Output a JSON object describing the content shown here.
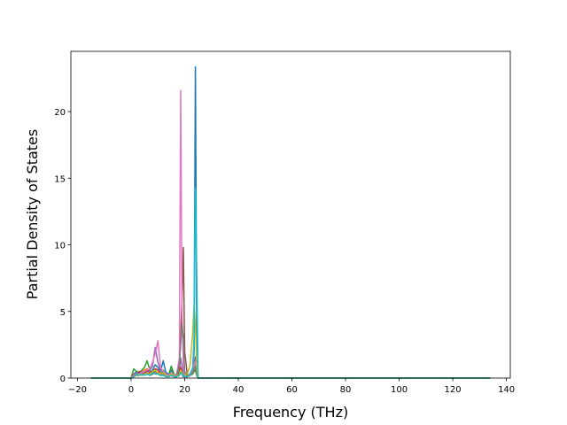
{
  "chart_data": {
    "type": "line",
    "xlabel": "Frequency (THz)",
    "ylabel": "Partial Density of States",
    "x": [
      -15,
      -1,
      0,
      1,
      2,
      3,
      4,
      5,
      6,
      7,
      8,
      9,
      10,
      11,
      12,
      13,
      14,
      15,
      16,
      17,
      18,
      18.5,
      19,
      19.5,
      20,
      21,
      22,
      23,
      23.5,
      24,
      24.5,
      25,
      26,
      134
    ],
    "series": [
      {
        "color": "#1f77b4",
        "values": [
          0,
          0,
          0,
          0.3,
          0.5,
          0.3,
          0.2,
          0.4,
          0.5,
          0.3,
          0.6,
          1.0,
          0.8,
          0.5,
          1.3,
          0.4,
          0.3,
          0.6,
          0.2,
          0.1,
          0.2,
          0.5,
          0.3,
          0.1,
          0.2,
          0.1,
          0.2,
          0.5,
          2.0,
          23.35,
          3.0,
          0,
          0,
          0
        ]
      },
      {
        "color": "#ff7f0e",
        "values": [
          0,
          0,
          0,
          0.2,
          0.3,
          0.4,
          0.5,
          0.6,
          0.7,
          0.5,
          0.3,
          0.4,
          0.3,
          0.2,
          0.3,
          0.2,
          0.1,
          0.2,
          0.1,
          0.1,
          0.2,
          0.3,
          0.4,
          0.2,
          0.1,
          0.1,
          0.2,
          0.4,
          0.6,
          0.5,
          0.2,
          0,
          0,
          0
        ]
      },
      {
        "color": "#2ca02c",
        "values": [
          0,
          0,
          0,
          0.7,
          0.5,
          0.4,
          0.6,
          0.8,
          1.3,
          0.6,
          0.4,
          0.5,
          0.4,
          0.3,
          0.6,
          0.3,
          0.2,
          0.9,
          0.3,
          0.1,
          0.3,
          0.6,
          0.4,
          0.2,
          0.1,
          0.1,
          0.2,
          0.3,
          0.5,
          0.7,
          0.2,
          0,
          0,
          0
        ]
      },
      {
        "color": "#d62728",
        "values": [
          0,
          0,
          0,
          0.3,
          0.2,
          0.5,
          0.4,
          0.3,
          0.6,
          0.4,
          0.5,
          0.7,
          0.6,
          0.3,
          0.4,
          0.2,
          0.1,
          0.3,
          0.2,
          0.1,
          0.4,
          0.8,
          0.5,
          0.3,
          0.1,
          0.1,
          0.2,
          0.6,
          0.9,
          1.1,
          0.3,
          0,
          0,
          0
        ]
      },
      {
        "color": "#9467bd",
        "values": [
          0,
          0,
          0,
          0.2,
          0.4,
          0.3,
          0.5,
          0.4,
          0.3,
          0.6,
          0.9,
          2.3,
          1.2,
          0.6,
          0.5,
          0.3,
          0.2,
          0.4,
          0.2,
          0.1,
          0.6,
          1.5,
          0.9,
          0.4,
          0.2,
          0.1,
          0.3,
          0.7,
          1.2,
          1.6,
          0.4,
          0,
          0,
          0
        ]
      },
      {
        "color": "#8c564b",
        "values": [
          0,
          0,
          0,
          0.1,
          0.2,
          0.3,
          0.2,
          0.4,
          0.3,
          0.2,
          0.3,
          0.5,
          0.4,
          0.2,
          0.3,
          0.2,
          0.1,
          0.2,
          0.1,
          0.1,
          0.5,
          3.0,
          6.0,
          9.8,
          2.0,
          0.2,
          0.3,
          0.5,
          0.8,
          1.0,
          0.3,
          0,
          0,
          0
        ]
      },
      {
        "color": "#e377c2",
        "values": [
          0,
          0,
          0,
          0.2,
          0.3,
          0.2,
          0.4,
          0.5,
          0.6,
          0.7,
          1.2,
          1.8,
          2.8,
          0.8,
          0.5,
          0.3,
          0.2,
          0.4,
          0.2,
          0.3,
          1.5,
          21.6,
          5.0,
          1.0,
          0.3,
          0.1,
          0.2,
          0.5,
          0.9,
          1.2,
          0.3,
          0,
          0,
          0
        ]
      },
      {
        "color": "#7f7f7f",
        "values": [
          0,
          0,
          0,
          0.1,
          0.2,
          0.2,
          0.3,
          0.2,
          0.3,
          0.2,
          0.4,
          0.5,
          0.3,
          0.2,
          0.3,
          0.2,
          0.1,
          0.2,
          0.1,
          0.2,
          1.0,
          2.5,
          4.0,
          3.0,
          0.5,
          0.1,
          0.2,
          0.4,
          0.7,
          0.9,
          0.2,
          0,
          0,
          0
        ]
      },
      {
        "color": "#bcbd22",
        "values": [
          0,
          0,
          0,
          0.1,
          0.2,
          0.3,
          0.2,
          0.3,
          0.4,
          0.3,
          0.5,
          0.6,
          0.4,
          0.3,
          0.4,
          0.2,
          0.1,
          0.3,
          0.2,
          0.1,
          0.3,
          0.6,
          0.4,
          0.2,
          0.2,
          0.3,
          1.0,
          3.4,
          5.5,
          4.0,
          1.0,
          0,
          0,
          0
        ]
      },
      {
        "color": "#17becf",
        "values": [
          0,
          0,
          0,
          0.1,
          0.3,
          0.2,
          0.3,
          0.2,
          0.3,
          0.2,
          0.4,
          0.3,
          0.3,
          0.2,
          0.2,
          0.1,
          0.1,
          0.2,
          0.1,
          0.1,
          0.2,
          0.4,
          0.3,
          0.2,
          0.1,
          0.1,
          0.3,
          0.8,
          3.0,
          14.3,
          7.8,
          0,
          0,
          0
        ]
      }
    ],
    "xlim": [
      -22.45,
      141.45
    ],
    "xticks": [
      {
        "value": -20,
        "label": "−20"
      },
      0,
      20,
      40,
      60,
      80,
      100,
      120,
      140
    ],
    "ylim": [
      0,
      24.52
    ],
    "yticks": [
      0,
      5,
      10,
      15,
      20
    ],
    "grid": false
  }
}
